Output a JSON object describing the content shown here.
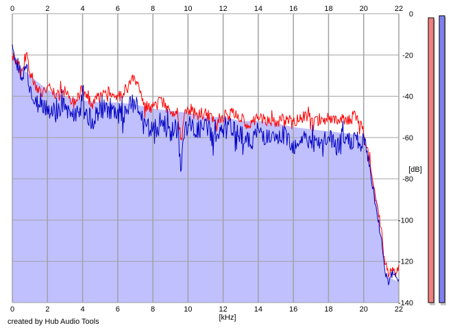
{
  "footer_text": "created by Hub Audio Tools",
  "chart_data": {
    "type": "area",
    "x_unit_label": "[kHz]",
    "y_unit_label": "[dB]",
    "xlim": [
      0,
      22
    ],
    "ylim": [
      -140,
      0
    ],
    "x_ticks": [
      0,
      2,
      4,
      6,
      8,
      10,
      12,
      14,
      16,
      18,
      20,
      22
    ],
    "y_ticks": [
      0,
      -20,
      -40,
      -60,
      -80,
      -100,
      -120,
      -140
    ],
    "y_tick_labels": [
      "0",
      "-20",
      "-40",
      "-60",
      "-80",
      "-100",
      "-120",
      "-140"
    ],
    "grid": true,
    "colors": {
      "plot_background": "#ffffff",
      "fill": "#c0c0ff",
      "grid": "#a0a0a0",
      "left_channel": "#ff0000",
      "right_channel": "#0000c0",
      "left_meter": "#f08080",
      "right_meter": "#8080f0"
    },
    "fill_envelope": [
      [
        0,
        -18
      ],
      [
        0.5,
        -26
      ],
      [
        1,
        -30
      ],
      [
        2,
        -37
      ],
      [
        3,
        -40
      ],
      [
        4,
        -42
      ],
      [
        5,
        -43
      ],
      [
        6,
        -43
      ],
      [
        7,
        -44
      ],
      [
        8,
        -46
      ],
      [
        9,
        -47
      ],
      [
        10,
        -48
      ],
      [
        11,
        -50
      ],
      [
        12,
        -50
      ],
      [
        13,
        -52
      ],
      [
        14,
        -52
      ],
      [
        15,
        -53
      ],
      [
        16,
        -55
      ],
      [
        17,
        -56
      ],
      [
        18,
        -57
      ],
      [
        19,
        -58
      ],
      [
        19.8,
        -59
      ],
      [
        20,
        -60
      ],
      [
        20.4,
        -75
      ],
      [
        20.8,
        -92
      ],
      [
        21,
        -110
      ],
      [
        21.2,
        -126
      ],
      [
        21.5,
        -128
      ],
      [
        22,
        -130
      ]
    ],
    "series": [
      {
        "channel": "left",
        "points": [
          [
            0,
            -20
          ],
          [
            0.1,
            -18
          ],
          [
            0.2,
            -24
          ],
          [
            0.35,
            -22
          ],
          [
            0.5,
            -30
          ],
          [
            0.65,
            -24
          ],
          [
            0.8,
            -19
          ],
          [
            1,
            -28
          ],
          [
            1.3,
            -35
          ],
          [
            1.6,
            -38
          ],
          [
            2,
            -36
          ],
          [
            2.5,
            -40
          ],
          [
            3,
            -38
          ],
          [
            3.5,
            -43
          ],
          [
            4,
            -35
          ],
          [
            4.5,
            -44
          ],
          [
            5,
            -40
          ],
          [
            5.5,
            -38
          ],
          [
            6,
            -42
          ],
          [
            6.5,
            -36
          ],
          [
            7,
            -32
          ],
          [
            7.5,
            -45
          ],
          [
            8,
            -46
          ],
          [
            8.5,
            -42
          ],
          [
            9,
            -48
          ],
          [
            9.4,
            -46
          ],
          [
            9.6,
            -62
          ],
          [
            9.8,
            -50
          ],
          [
            10,
            -47
          ],
          [
            10.5,
            -49
          ],
          [
            11,
            -48
          ],
          [
            11.5,
            -52
          ],
          [
            12,
            -50
          ],
          [
            12.5,
            -48
          ],
          [
            13,
            -51
          ],
          [
            13.5,
            -54
          ],
          [
            14,
            -50
          ],
          [
            14.5,
            -52
          ],
          [
            15,
            -53
          ],
          [
            15.5,
            -51
          ],
          [
            16,
            -52
          ],
          [
            16.5,
            -50
          ],
          [
            17,
            -51
          ],
          [
            17.5,
            -53
          ],
          [
            18,
            -50
          ],
          [
            18.5,
            -52
          ],
          [
            19,
            -51
          ],
          [
            19.5,
            -50
          ],
          [
            19.8,
            -53
          ],
          [
            20,
            -58
          ],
          [
            20.3,
            -70
          ],
          [
            20.7,
            -90
          ],
          [
            21,
            -105
          ],
          [
            21.2,
            -120
          ],
          [
            21.4,
            -126
          ],
          [
            21.6,
            -122
          ],
          [
            21.8,
            -125
          ],
          [
            22,
            -124
          ]
        ]
      },
      {
        "channel": "right",
        "points": [
          [
            0,
            -17
          ],
          [
            0.1,
            -20
          ],
          [
            0.2,
            -28
          ],
          [
            0.35,
            -24
          ],
          [
            0.5,
            -34
          ],
          [
            0.65,
            -29
          ],
          [
            0.8,
            -23
          ],
          [
            1,
            -36
          ],
          [
            1.3,
            -45
          ],
          [
            1.6,
            -42
          ],
          [
            2,
            -46
          ],
          [
            2.5,
            -48
          ],
          [
            3,
            -44
          ],
          [
            3.5,
            -50
          ],
          [
            4,
            -43
          ],
          [
            4.5,
            -52
          ],
          [
            5,
            -47
          ],
          [
            5.5,
            -46
          ],
          [
            6,
            -51
          ],
          [
            6.5,
            -47
          ],
          [
            7,
            -42
          ],
          [
            7.5,
            -55
          ],
          [
            8,
            -57
          ],
          [
            8.5,
            -52
          ],
          [
            9,
            -58
          ],
          [
            9.4,
            -55
          ],
          [
            9.6,
            -74
          ],
          [
            9.8,
            -57
          ],
          [
            10,
            -54
          ],
          [
            10.5,
            -57
          ],
          [
            11,
            -55
          ],
          [
            11.5,
            -60
          ],
          [
            12,
            -58
          ],
          [
            12.5,
            -55
          ],
          [
            13,
            -58
          ],
          [
            13.5,
            -63
          ],
          [
            14,
            -57
          ],
          [
            14.5,
            -60
          ],
          [
            15,
            -62
          ],
          [
            15.5,
            -58
          ],
          [
            16,
            -64
          ],
          [
            16.5,
            -60
          ],
          [
            17,
            -62
          ],
          [
            17.5,
            -65
          ],
          [
            18,
            -60
          ],
          [
            18.5,
            -64
          ],
          [
            19,
            -62
          ],
          [
            19.5,
            -61
          ],
          [
            19.8,
            -65
          ],
          [
            20,
            -62
          ],
          [
            20.3,
            -72
          ],
          [
            20.7,
            -94
          ],
          [
            21,
            -108
          ],
          [
            21.2,
            -124
          ],
          [
            21.4,
            -130
          ],
          [
            21.6,
            -126
          ],
          [
            21.8,
            -128
          ],
          [
            22,
            -127
          ]
        ]
      }
    ],
    "level_meters": [
      {
        "channel": "left",
        "top_db": -2
      },
      {
        "channel": "right",
        "top_db": -1
      }
    ]
  }
}
